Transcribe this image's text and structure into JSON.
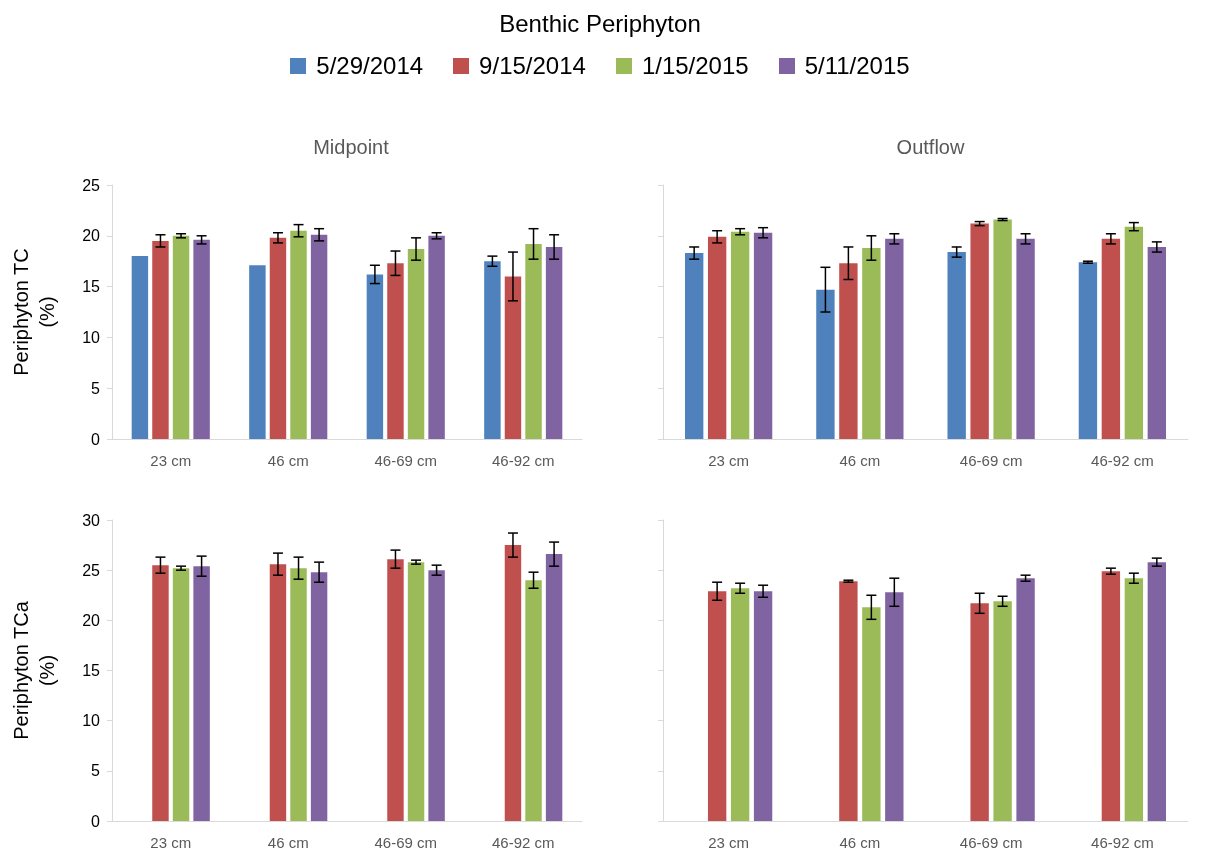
{
  "chart_data": [
    {
      "type": "bar",
      "title": "Benthic Periphyton",
      "subtitle": "Midpoint",
      "ylabel": "Periphyton TC\n(%)",
      "legend": "top",
      "grid": false,
      "categories": [
        "23 cm",
        "46 cm",
        "46-69 cm",
        "46-92 cm"
      ],
      "ylim": [
        0,
        25
      ],
      "yticks": [
        0,
        5,
        10,
        15,
        20,
        25
      ],
      "series": [
        {
          "name": "5/29/2014",
          "color": "#4f81bd",
          "values": [
            18.0,
            17.1,
            16.2,
            17.5
          ],
          "errors": [
            null,
            null,
            0.9,
            0.5
          ]
        },
        {
          "name": "9/15/2014",
          "color": "#c0504d",
          "values": [
            19.5,
            19.8,
            17.3,
            16.0
          ],
          "errors": [
            0.6,
            0.5,
            1.2,
            2.4
          ]
        },
        {
          "name": "1/15/2015",
          "color": "#9bbb59",
          "values": [
            20.0,
            20.5,
            18.7,
            19.2
          ],
          "errors": [
            0.2,
            0.6,
            1.1,
            1.5
          ]
        },
        {
          "name": "5/11/2015",
          "color": "#8064a2",
          "values": [
            19.6,
            20.1,
            20.0,
            18.9
          ],
          "errors": [
            0.4,
            0.6,
            0.3,
            1.2
          ]
        }
      ]
    },
    {
      "type": "bar",
      "subtitle": "Outflow",
      "grid": false,
      "tick_labels": "x",
      "categories": [
        "23 cm",
        "46 cm",
        "46-69 cm",
        "46-92 cm"
      ],
      "ylim": [
        0,
        25
      ],
      "yticks": [
        0,
        5,
        10,
        15,
        20,
        25
      ],
      "series": [
        {
          "color": "#4f81bd",
          "values": [
            18.3,
            14.7,
            18.4,
            17.4
          ],
          "errors": [
            0.6,
            2.2,
            0.5,
            0.1
          ]
        },
        {
          "color": "#c0504d",
          "values": [
            19.9,
            17.3,
            21.2,
            19.7
          ],
          "errors": [
            0.6,
            1.6,
            0.2,
            0.5
          ]
        },
        {
          "color": "#9bbb59",
          "values": [
            20.4,
            18.8,
            21.6,
            20.9
          ],
          "errors": [
            0.3,
            1.2,
            0.1,
            0.4
          ]
        },
        {
          "color": "#8064a2",
          "values": [
            20.3,
            19.7,
            19.7,
            18.9
          ],
          "errors": [
            0.5,
            0.5,
            0.5,
            0.5
          ]
        }
      ]
    },
    {
      "type": "bar",
      "ylabel": "Periphyton TCa\n(%)",
      "grid": false,
      "categories": [
        "23 cm",
        "46 cm",
        "46-69 cm",
        "46-92 cm"
      ],
      "ylim": [
        0,
        30
      ],
      "yticks": [
        0,
        5,
        10,
        15,
        20,
        25,
        30
      ],
      "series": [
        {
          "color": "#4f81bd",
          "values": [
            null,
            null,
            null,
            null
          ]
        },
        {
          "color": "#c0504d",
          "values": [
            25.5,
            25.6,
            26.1,
            27.5
          ],
          "errors": [
            0.8,
            1.1,
            0.9,
            1.2
          ]
        },
        {
          "color": "#9bbb59",
          "values": [
            25.2,
            25.2,
            25.8,
            24.0
          ],
          "errors": [
            0.2,
            1.1,
            0.2,
            0.8
          ]
        },
        {
          "color": "#8064a2",
          "values": [
            25.4,
            24.8,
            25.0,
            26.6
          ],
          "errors": [
            1.0,
            1.0,
            0.5,
            1.2
          ]
        }
      ]
    },
    {
      "type": "bar",
      "grid": false,
      "tick_labels": "x",
      "categories": [
        "23 cm",
        "46 cm",
        "46-69 cm",
        "46-92 cm"
      ],
      "ylim": [
        0,
        30
      ],
      "yticks": [
        0,
        5,
        10,
        15,
        20,
        25,
        30
      ],
      "series": [
        {
          "color": "#4f81bd",
          "values": [
            null,
            null,
            null,
            null
          ]
        },
        {
          "color": "#c0504d",
          "values": [
            22.9,
            23.9,
            21.7,
            24.9
          ],
          "errors": [
            0.9,
            0.1,
            1.0,
            0.3
          ]
        },
        {
          "color": "#9bbb59",
          "values": [
            23.2,
            21.3,
            21.9,
            24.2
          ],
          "errors": [
            0.5,
            1.2,
            0.5,
            0.5
          ]
        },
        {
          "color": "#8064a2",
          "values": [
            22.9,
            22.8,
            24.2,
            25.8
          ],
          "errors": [
            0.6,
            1.4,
            0.3,
            0.4
          ]
        }
      ]
    }
  ]
}
